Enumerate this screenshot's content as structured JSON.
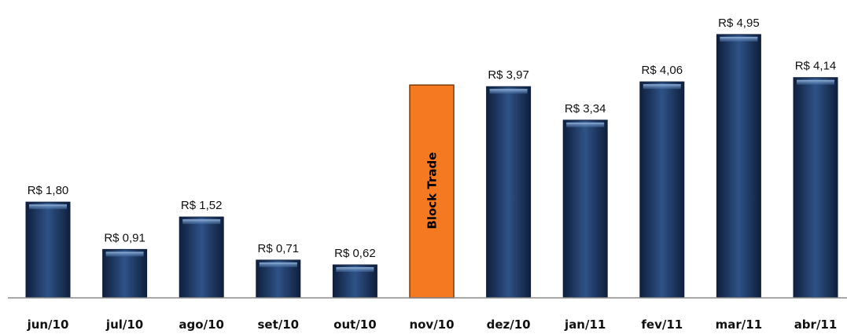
{
  "colors": {
    "bar": "#1f3864",
    "bar_light": "#2e5286",
    "bar_dark": "#0f1f3d",
    "highlight": "#f47920",
    "highlight_edge": "#7a3a0c",
    "axis": "#8c8c8c"
  },
  "chart_data": {
    "type": "bar",
    "title": "",
    "xlabel": "",
    "ylabel": "",
    "ylim": [
      0,
      5.6
    ],
    "grid": false,
    "legend": "none",
    "categories": [
      "jun/10",
      "jul/10",
      "ago/10",
      "set/10",
      "out/10",
      "nov/10",
      "dez/10",
      "jan/11",
      "fev/11",
      "mar/11",
      "abr/11"
    ],
    "values": [
      1.8,
      0.91,
      1.52,
      0.71,
      0.62,
      4.0,
      3.97,
      3.34,
      4.06,
      4.95,
      4.14
    ],
    "value_labels": [
      "R$ 1,80",
      "R$ 0,91",
      "R$ 1,52",
      "R$ 0,71",
      "R$ 0,62",
      "",
      "R$ 3,97",
      "R$ 3,34",
      "R$ 4,06",
      "R$ 4,95",
      "R$ 4,14"
    ],
    "highlight_index": 5,
    "annotation": "Block Trade"
  }
}
